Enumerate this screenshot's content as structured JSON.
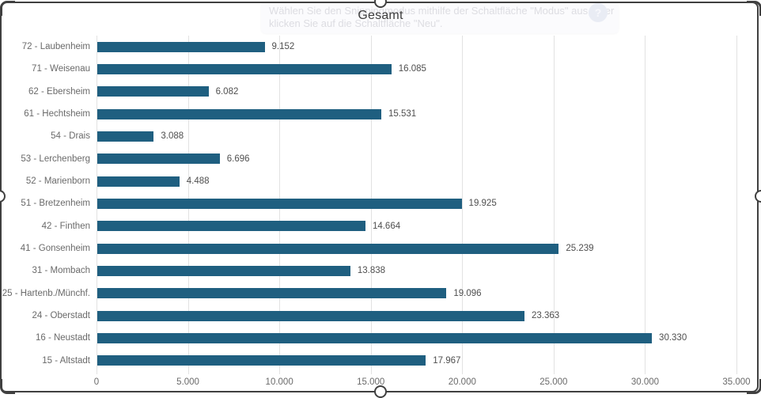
{
  "snip_overlay": {
    "tooltip_line1": "Wählen Sie den Snippingmodus mithilfe der Schaltfläche \"Modus\" aus, oder",
    "tooltip_line2": "klicken Sie auf die Schaltfläche \"Neu\".",
    "help_icon": "?"
  },
  "chart_data": {
    "type": "bar",
    "orientation": "horizontal",
    "title": "Gesamt",
    "categories": [
      "72 - Laubenheim",
      "71 - Weisenau",
      "62 - Ebersheim",
      "61 - Hechtsheim",
      "54 - Drais",
      "53 - Lerchenberg",
      "52 - Marienborn",
      "51 - Bretzenheim",
      "42 - Finthen",
      "41 - Gonsenheim",
      "31 - Mombach",
      "25 - Hartenb./Münchf.",
      "24 - Oberstadt",
      "16 - Neustadt",
      "15 - Altstadt"
    ],
    "values": [
      9152,
      16085,
      6082,
      15531,
      3088,
      6696,
      4488,
      19925,
      14664,
      25239,
      13838,
      19096,
      23363,
      30330,
      17967
    ],
    "value_labels": [
      "9.152",
      "16.085",
      "6.082",
      "15.531",
      "3.088",
      "6.696",
      "4.488",
      "19.925",
      "14.664",
      "25.239",
      "13.838",
      "19.096",
      "23.363",
      "30.330",
      "17.967"
    ],
    "x_tick_values": [
      0,
      5000,
      10000,
      15000,
      20000,
      25000,
      30000,
      35000
    ],
    "x_tick_labels": [
      "0",
      "5.000",
      "10.000",
      "15.000",
      "20.000",
      "25.000",
      "30.000",
      "35.000"
    ],
    "xlim": [
      0,
      35000
    ],
    "grid": true,
    "legend": "none",
    "bar_color": "#1f5f80"
  }
}
